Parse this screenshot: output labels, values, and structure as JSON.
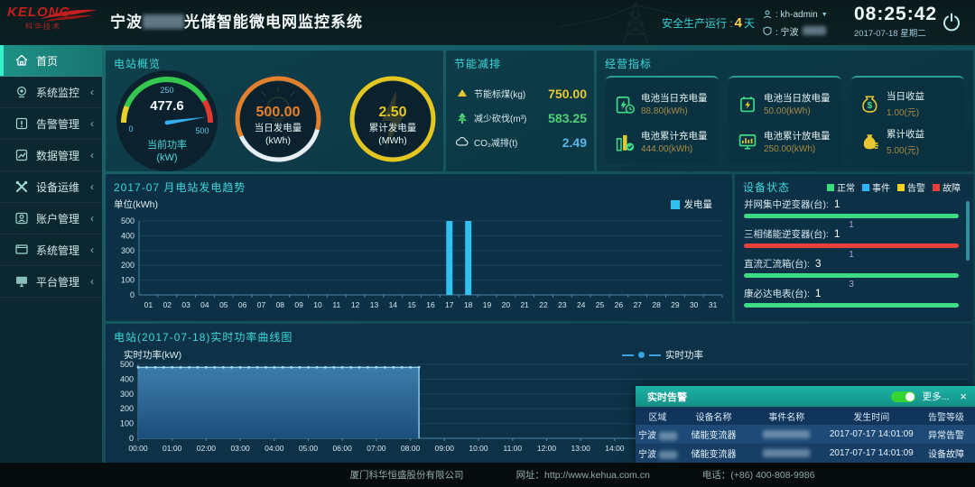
{
  "header": {
    "logo_brand": "KELONG",
    "logo_sub": "科华技术",
    "title_prefix": "宁波",
    "title_suffix": "光储智能微电网监控系统",
    "safety_label": "安全生产运行 :",
    "safety_days": "4",
    "safety_unit": "天",
    "user_name": ": kh-admin",
    "site_prefix": ": 宁波",
    "clock_time": "08:25:42",
    "clock_date": "2017-07-18 星期二"
  },
  "sidebar": {
    "items": [
      {
        "label": "首页",
        "icon": "home-icon",
        "active": true,
        "expandable": false
      },
      {
        "label": "系统监控",
        "icon": "monitor-icon",
        "active": false,
        "expandable": true
      },
      {
        "label": "告警管理",
        "icon": "alert-icon",
        "active": false,
        "expandable": true
      },
      {
        "label": "数据管理",
        "icon": "data-icon",
        "active": false,
        "expandable": true
      },
      {
        "label": "设备运维",
        "icon": "tools-icon",
        "active": false,
        "expandable": true
      },
      {
        "label": "账户管理",
        "icon": "account-icon",
        "active": false,
        "expandable": true
      },
      {
        "label": "系统管理",
        "icon": "system-icon",
        "active": false,
        "expandable": true
      },
      {
        "label": "平台管理",
        "icon": "platform-icon",
        "active": false,
        "expandable": true
      }
    ]
  },
  "overview": {
    "title": "电站概览",
    "gauges": [
      {
        "value": "477.6",
        "numeric": 477.6,
        "max": 500,
        "label": "当前功率",
        "unit": "(kW)",
        "ticks": [
          "0",
          "250",
          "500"
        ],
        "kind": "needle"
      },
      {
        "value": "500.00",
        "label": "当日发电量",
        "unit": "(kWh)",
        "color": "#e2802b",
        "kind": "ring-split"
      },
      {
        "value": "2.50",
        "label": "累计发电量",
        "unit": "(MWh)",
        "color": "#e5c61f",
        "kind": "ring-full"
      }
    ]
  },
  "energy_saving": {
    "title": "节能减排",
    "items": [
      {
        "icon": "coal-icon",
        "label": "节能标煤(kg)",
        "value": "750.00",
        "color": "#e8c832"
      },
      {
        "icon": "tree-icon",
        "label": "减少砍伐(m³)",
        "value": "583.25",
        "color": "#4fd179"
      },
      {
        "icon": "co2-icon",
        "label": "CO₂减排(t)",
        "value": "2.49",
        "color": "#58b7e8"
      }
    ]
  },
  "business": {
    "title": "经营指标",
    "cards": [
      {
        "rows": [
          {
            "icon": "battery-charge-icon",
            "label": "电池当日充电量",
            "value": "88.80(kWh)"
          },
          {
            "icon": "bar-stat-icon",
            "label": "电池累计充电量",
            "value": "444.00(kWh)"
          }
        ]
      },
      {
        "rows": [
          {
            "icon": "battery-bolt-icon",
            "label": "电池当日放电量",
            "value": "50.00(kWh)"
          },
          {
            "icon": "monitor-stat-icon",
            "label": "电池累计放电量",
            "value": "250.00(kWh)"
          }
        ]
      },
      {
        "rows": [
          {
            "icon": "money-pouch-icon",
            "label": "当日收益",
            "value": "1.00(元)"
          },
          {
            "icon": "money-bag-icon",
            "label": "累计收益",
            "value": "5.00(元)"
          }
        ]
      }
    ]
  },
  "device_status": {
    "title": "设备状态",
    "legend": [
      {
        "label": "正常",
        "color": "#3ddc84"
      },
      {
        "label": "事件",
        "color": "#29b6f6"
      },
      {
        "label": "告警",
        "color": "#f3d321"
      },
      {
        "label": "故障",
        "color": "#e8413c"
      }
    ],
    "rows": [
      {
        "label": "并网集中逆变器(台):",
        "count": "1",
        "bar_color": "#3ddc84",
        "sub": "1"
      },
      {
        "label": "三相储能逆变器(台):",
        "count": "1",
        "bar_color": "#e8413c",
        "sub": "1"
      },
      {
        "label": "直流汇流箱(台):",
        "count": "3",
        "bar_color": "#3ddc84",
        "sub": "3"
      },
      {
        "label": "康必达电表(台):",
        "count": "1",
        "bar_color": "#3ddc84",
        "sub": ""
      }
    ]
  },
  "alarm_popup": {
    "title": "实时告警",
    "more_label": "更多...",
    "toggle_on": true,
    "columns": [
      "区域",
      "设备名称",
      "事件名称",
      "发生时间",
      "告警等级"
    ],
    "rows": [
      {
        "region_prefix": "宁波",
        "device": "储能变流器",
        "time": "2017-07-17 14:01:09",
        "level": "异常告警"
      },
      {
        "region_prefix": "宁波",
        "device": "储能变流器",
        "time": "2017-07-17 14:01:09",
        "level": "设备故障"
      }
    ]
  },
  "footer": {
    "company": "厦门科华恒盛股份有限公司",
    "website": "网址：http://www.kehua.com.cn",
    "phone": "电话：(+86) 400-808-9986"
  },
  "chart_data": [
    {
      "id": "monthly_generation",
      "type": "bar",
      "title": "2017-07 月电站发电趋势",
      "ylabel": "单位(kWh)",
      "legend": [
        "发电量"
      ],
      "legend_position": "top-right",
      "bar_color": "#2fc1f0",
      "categories": [
        "01",
        "02",
        "03",
        "04",
        "05",
        "06",
        "07",
        "08",
        "09",
        "10",
        "11",
        "12",
        "13",
        "14",
        "15",
        "16",
        "17",
        "18",
        "19",
        "20",
        "21",
        "22",
        "23",
        "24",
        "25",
        "26",
        "27",
        "28",
        "29",
        "30",
        "31"
      ],
      "values": [
        0,
        0,
        0,
        0,
        0,
        0,
        0,
        0,
        0,
        0,
        0,
        0,
        0,
        0,
        0,
        0,
        500,
        500,
        0,
        0,
        0,
        0,
        0,
        0,
        0,
        0,
        0,
        0,
        0,
        0,
        0
      ],
      "ylim": [
        0,
        500
      ],
      "yticks": [
        0,
        100,
        200,
        300,
        400,
        500
      ],
      "grid": true
    },
    {
      "id": "realtime_power",
      "type": "area",
      "title": "电站(2017-07-18)实时功率曲线图",
      "ylabel": "实时功率(kW)",
      "legend": [
        "实时功率"
      ],
      "legend_position": "top-right",
      "series": [
        {
          "name": "实时功率",
          "value": 480,
          "start_hour": 0,
          "end_hour": 8.25,
          "interval_minutes": 15
        }
      ],
      "x_labels": [
        "00:00",
        "01:00",
        "02:00",
        "03:00",
        "04:00",
        "05:00",
        "06:00",
        "07:00",
        "08:00",
        "09:00",
        "10:00",
        "11:00",
        "12:00",
        "13:00",
        "14:00"
      ],
      "x_domain_hours": [
        0,
        24.4
      ],
      "ylim": [
        0,
        500
      ],
      "yticks": [
        0,
        100,
        200,
        300,
        400,
        500
      ],
      "line_color": "#8fd0ee",
      "fill_top": "#3f81b0",
      "fill_bottom": "#1c4f7e",
      "dot_color": "#a8dcf2",
      "grid": true
    }
  ]
}
